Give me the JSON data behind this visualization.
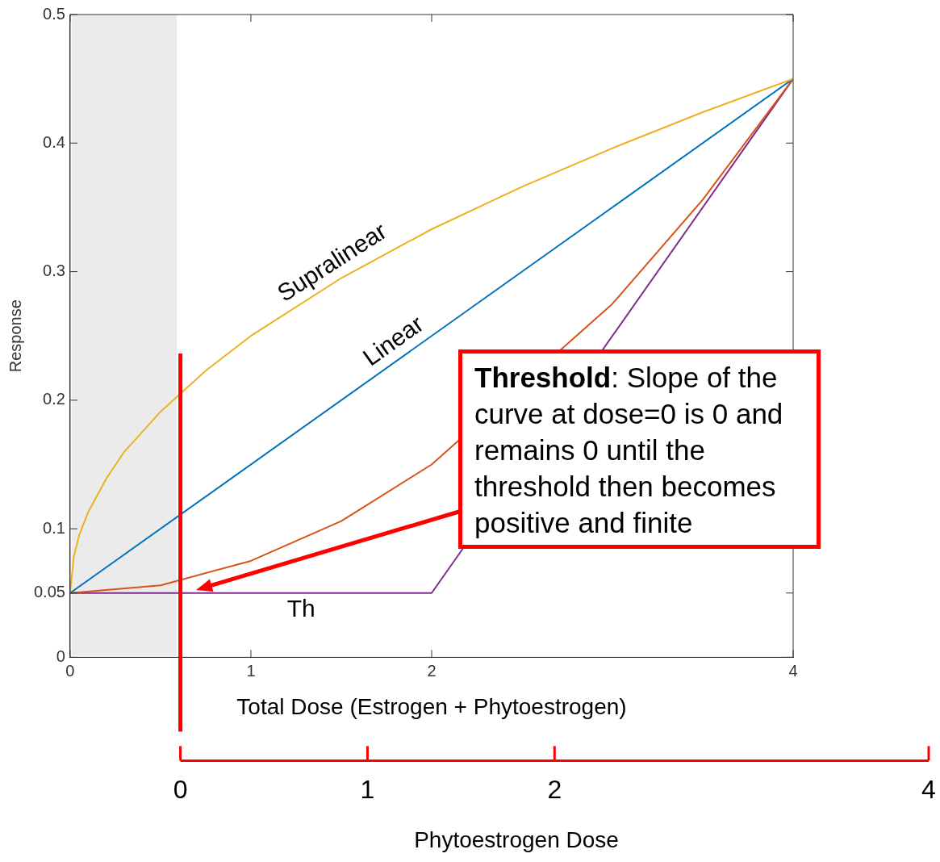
{
  "chart_data": {
    "type": "line",
    "xlabel": "Total Dose (Estrogen + Phytoestrogen)",
    "ylabel": "Response",
    "x2label": "Phytoestrogen Dose",
    "xlim": [
      0,
      4
    ],
    "xticks": [
      0,
      1,
      2,
      4
    ],
    "ylim": [
      0,
      0.5
    ],
    "yticks": [
      0,
      0.05,
      0.1,
      0.2,
      0.3,
      0.4,
      0.5
    ],
    "x2lim": [
      0,
      4
    ],
    "x2ticks": [
      0,
      1,
      2,
      4
    ],
    "grid": false,
    "legend": false,
    "marker": "none",
    "line_style": "solid",
    "series": [
      {
        "name": "Supralinear",
        "color": "#edb120",
        "x": [
          0,
          0.02,
          0.05,
          0.1,
          0.2,
          0.3,
          0.5,
          0.75,
          1,
          1.5,
          2,
          2.5,
          3,
          3.5,
          4
        ],
        "values": [
          0.05,
          0.078,
          0.095,
          0.113,
          0.139,
          0.16,
          0.191,
          0.223,
          0.25,
          0.295,
          0.333,
          0.366,
          0.396,
          0.424,
          0.45
        ]
      },
      {
        "name": "Linear",
        "color": "#0072bd",
        "x": [
          0,
          4
        ],
        "values": [
          0.05,
          0.45
        ]
      },
      {
        "color": "#d95319",
        "x": [
          0,
          0.5,
          1,
          1.5,
          2,
          2.5,
          3,
          3.5,
          4
        ],
        "values": [
          0.05,
          0.056,
          0.075,
          0.106,
          0.15,
          null,
          0.275,
          0.356,
          0.45
        ]
      },
      {
        "name": "Th",
        "color": "#7e2f8e",
        "x": [
          0,
          2,
          4
        ],
        "values": [
          0.05,
          0.05,
          0.45
        ]
      }
    ],
    "bands": [
      {
        "axis": "x",
        "from": 0,
        "to": 0.59,
        "color": "#ebebeb"
      }
    ],
    "ref_lines": [
      {
        "axis": "x",
        "value": 0.61,
        "color": "#ff0000"
      }
    ],
    "annotations": [
      "Threshold: Slope of the curve at dose=0 is 0 and remains 0 until the threshold then becomes positive and finite"
    ]
  }
}
